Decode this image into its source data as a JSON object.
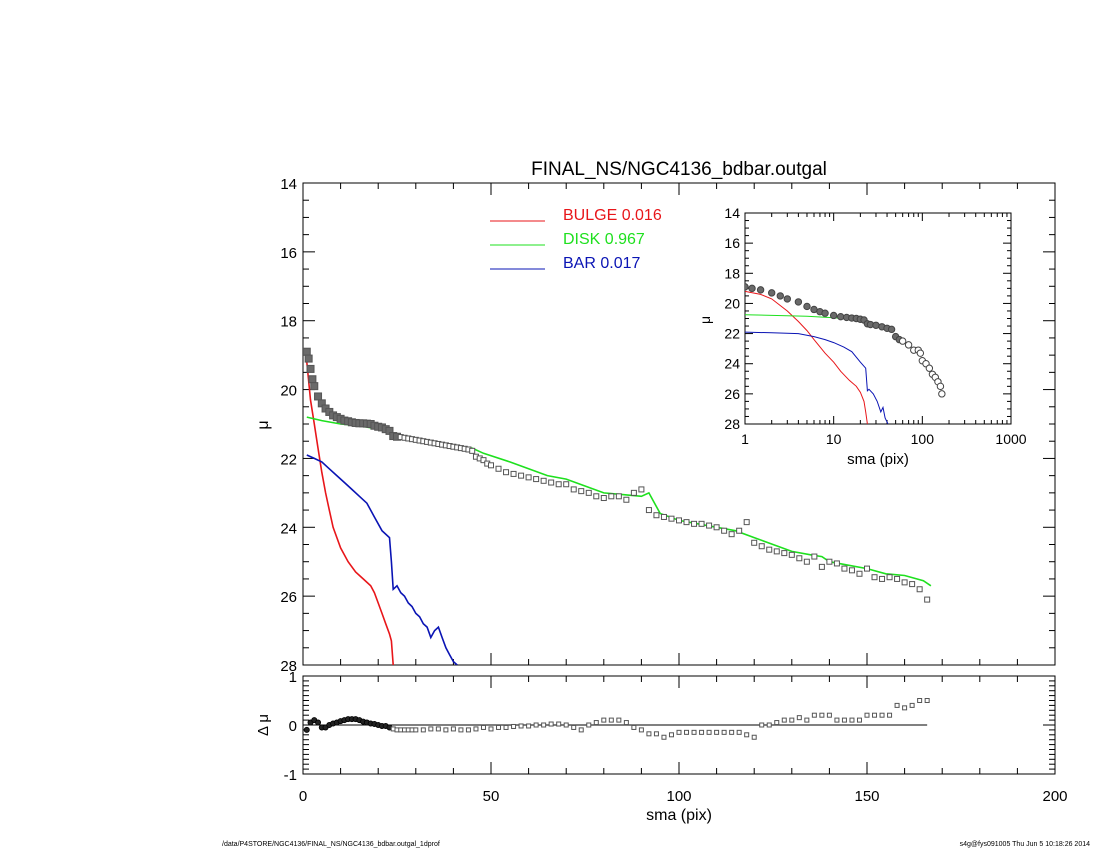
{
  "chart_data": [
    {
      "panel": "main",
      "type": "line",
      "title": "FINAL_NS/NGC4136_bdbar.outgal",
      "xlabel": "sma (pix)",
      "ylabel": "μ",
      "xlim": [
        0,
        200
      ],
      "ylim": [
        28,
        14
      ],
      "yticks": [
        14,
        16,
        18,
        20,
        22,
        24,
        26,
        28
      ],
      "xticks": [
        0,
        50,
        100,
        150,
        200
      ],
      "legend_position": "top-center",
      "legend": [
        {
          "label": "BULGE",
          "value": "0.016",
          "color": "#e8161a"
        },
        {
          "label": "DISK",
          "value": "0.967",
          "color": "#1ee01e"
        },
        {
          "label": "BAR",
          "value": "0.017",
          "color": "#0a14b4"
        }
      ],
      "series": [
        {
          "name": "BULGE",
          "color": "#e8161a",
          "x": [
            1,
            2,
            3,
            4,
            5,
            6,
            7,
            8,
            10,
            12,
            14,
            16,
            18,
            19,
            20,
            21,
            22,
            23,
            23.5,
            24
          ],
          "y": [
            19.2,
            20.3,
            21.0,
            21.7,
            22.4,
            23.0,
            23.5,
            24.0,
            24.6,
            25.0,
            25.3,
            25.5,
            25.7,
            25.9,
            26.2,
            26.5,
            26.8,
            27.1,
            27.3,
            28.0
          ]
        },
        {
          "name": "DISK",
          "color": "#1ee01e",
          "x": [
            1,
            5,
            10,
            15,
            20,
            23,
            24,
            30,
            40,
            45,
            48,
            55,
            60,
            65,
            70,
            75,
            80,
            85,
            90,
            92,
            95,
            100,
            105,
            110,
            115,
            120,
            125,
            130,
            135,
            138,
            140,
            145,
            150,
            155,
            160,
            165,
            167
          ],
          "y": [
            20.8,
            20.9,
            21.0,
            21.05,
            21.15,
            21.2,
            21.4,
            21.5,
            21.65,
            21.7,
            21.85,
            22.1,
            22.3,
            22.5,
            22.6,
            22.8,
            23.0,
            23.05,
            23.1,
            23.0,
            23.6,
            23.8,
            23.9,
            24.0,
            24.1,
            24.3,
            24.5,
            24.7,
            24.8,
            24.85,
            25.0,
            25.1,
            25.2,
            25.35,
            25.4,
            25.55,
            25.7
          ]
        },
        {
          "name": "BAR",
          "color": "#0a14b4",
          "x": [
            1,
            3,
            5,
            7,
            9,
            11,
            13,
            15,
            17,
            19,
            21,
            23,
            23.5,
            24,
            25,
            26,
            27,
            28,
            29,
            30,
            31,
            32,
            33,
            34,
            35,
            36,
            37,
            38,
            39,
            40,
            41
          ],
          "y": [
            21.9,
            22.0,
            22.1,
            22.3,
            22.5,
            22.7,
            22.9,
            23.1,
            23.3,
            23.7,
            24.1,
            24.3,
            25.0,
            25.8,
            25.7,
            25.9,
            26.0,
            26.2,
            26.3,
            26.5,
            26.6,
            26.8,
            26.9,
            27.2,
            27.0,
            26.9,
            27.2,
            27.5,
            27.7,
            27.9,
            28.0
          ]
        },
        {
          "name": "data",
          "color": "#555555",
          "x": [
            1,
            1.5,
            2,
            2.5,
            3,
            4,
            5,
            6,
            7,
            8,
            9,
            10,
            11,
            12,
            13,
            14,
            15,
            16,
            17,
            18,
            19,
            20,
            21,
            22,
            23,
            24,
            25,
            26,
            27,
            28,
            29,
            30,
            31,
            32,
            33,
            34,
            35,
            36,
            37,
            38,
            39,
            40,
            41,
            42,
            43,
            44,
            45,
            46,
            47,
            48,
            49,
            50,
            52,
            54,
            56,
            58,
            60,
            62,
            64,
            66,
            68,
            70,
            72,
            74,
            76,
            78,
            80,
            82,
            84,
            86,
            88,
            90,
            92,
            94,
            96,
            98,
            100,
            102,
            104,
            106,
            108,
            110,
            112,
            114,
            116,
            118,
            120,
            122,
            124,
            126,
            128,
            130,
            132,
            134,
            136,
            138,
            140,
            142,
            144,
            146,
            148,
            150,
            152,
            154,
            156,
            158,
            160,
            162,
            164,
            166
          ],
          "y": [
            18.9,
            19.1,
            19.4,
            19.7,
            19.9,
            20.2,
            20.4,
            20.55,
            20.65,
            20.75,
            20.8,
            20.85,
            20.9,
            20.92,
            20.95,
            20.97,
            20.98,
            20.98,
            20.99,
            21.0,
            21.05,
            21.08,
            21.1,
            21.15,
            21.2,
            21.35,
            21.37,
            21.38,
            21.4,
            21.42,
            21.44,
            21.46,
            21.48,
            21.5,
            21.52,
            21.54,
            21.56,
            21.58,
            21.6,
            21.62,
            21.64,
            21.66,
            21.68,
            21.7,
            21.72,
            21.74,
            21.78,
            21.95,
            22.0,
            22.05,
            22.15,
            22.2,
            22.3,
            22.4,
            22.45,
            22.5,
            22.55,
            22.6,
            22.65,
            22.7,
            22.75,
            22.75,
            22.9,
            22.95,
            23.0,
            23.1,
            23.15,
            23.1,
            23.1,
            23.2,
            23.0,
            22.9,
            23.5,
            23.65,
            23.7,
            23.75,
            23.8,
            23.85,
            23.9,
            23.9,
            23.95,
            24.0,
            24.1,
            24.2,
            24.1,
            23.85,
            24.45,
            24.55,
            24.65,
            24.7,
            24.75,
            24.8,
            24.9,
            25.0,
            24.85,
            25.15,
            25.0,
            25.05,
            25.2,
            25.25,
            25.35,
            25.2,
            25.45,
            25.5,
            25.45,
            25.5,
            25.6,
            25.65,
            25.8,
            26.1
          ]
        }
      ]
    },
    {
      "panel": "inset",
      "type": "line",
      "xlabel": "sma (pix)",
      "ylabel": "μ",
      "xscale": "log",
      "xlim": [
        1,
        1000
      ],
      "ylim": [
        28,
        14
      ],
      "xticks": [
        1,
        10,
        100,
        1000
      ],
      "yticks": [
        14,
        16,
        18,
        20,
        22,
        24,
        26,
        28
      ],
      "series": [
        {
          "name": "BULGE",
          "color": "#e8161a",
          "x": [
            1,
            1.5,
            2,
            3,
            4,
            5,
            6,
            8,
            10,
            12,
            15,
            18,
            20,
            22,
            23,
            24
          ],
          "y": [
            19.2,
            19.4,
            19.7,
            20.5,
            21.2,
            21.8,
            22.4,
            23.3,
            23.9,
            24.5,
            25.1,
            25.5,
            25.9,
            26.5,
            27.2,
            28.0
          ]
        },
        {
          "name": "DISK",
          "color": "#1ee01e",
          "x": [
            1,
            5,
            10,
            20,
            24
          ],
          "y": [
            20.75,
            20.85,
            20.95,
            21.1,
            21.2
          ]
        },
        {
          "name": "BAR",
          "color": "#0a14b4",
          "x": [
            1,
            2,
            4,
            6,
            8,
            10,
            13,
            16,
            20,
            23,
            24,
            25,
            28,
            31,
            34,
            36,
            38,
            41
          ],
          "y": [
            21.9,
            21.95,
            22.0,
            22.2,
            22.4,
            22.6,
            22.9,
            23.2,
            23.9,
            24.3,
            25.8,
            25.7,
            26.0,
            26.5,
            27.2,
            26.9,
            27.6,
            28.0
          ]
        },
        {
          "name": "data",
          "color": "#555555",
          "x": [
            1,
            1.2,
            1.5,
            2,
            2.5,
            3,
            4,
            5,
            6,
            7,
            8,
            10,
            12,
            14,
            16,
            18,
            20,
            22,
            24,
            26,
            30,
            35,
            40,
            45,
            50,
            55,
            60,
            70,
            80,
            90,
            95,
            100,
            110,
            120,
            130,
            140,
            150,
            160,
            166
          ],
          "y": [
            18.9,
            19.0,
            19.1,
            19.3,
            19.5,
            19.7,
            19.9,
            20.2,
            20.4,
            20.55,
            20.65,
            20.8,
            20.88,
            20.93,
            20.97,
            21.0,
            21.05,
            21.1,
            21.35,
            21.4,
            21.45,
            21.55,
            21.65,
            21.72,
            22.2,
            22.4,
            22.5,
            22.75,
            23.1,
            23.1,
            23.3,
            23.8,
            24.0,
            24.3,
            24.7,
            24.9,
            25.2,
            25.5,
            26.0
          ]
        }
      ]
    },
    {
      "panel": "residual",
      "type": "scatter",
      "xlabel": "sma (pix)",
      "ylabel": "Δ μ",
      "xlim": [
        0,
        200
      ],
      "ylim": [
        -1,
        1
      ],
      "yticks": [
        -1,
        0,
        1
      ],
      "zero_line": [
        0,
        166
      ],
      "series": [
        {
          "name": "residual",
          "color": "#555555",
          "x": [
            1,
            2,
            3,
            4,
            5,
            6,
            7,
            8,
            9,
            10,
            11,
            12,
            13,
            14,
            15,
            16,
            17,
            18,
            19,
            20,
            21,
            22,
            23,
            24,
            25,
            26,
            27,
            28,
            29,
            30,
            32,
            34,
            36,
            38,
            40,
            42,
            44,
            46,
            48,
            50,
            52,
            54,
            56,
            58,
            60,
            62,
            64,
            66,
            68,
            70,
            72,
            74,
            76,
            78,
            80,
            82,
            84,
            86,
            88,
            90,
            92,
            94,
            96,
            98,
            100,
            102,
            104,
            106,
            108,
            110,
            112,
            114,
            116,
            118,
            120,
            122,
            124,
            126,
            128,
            130,
            132,
            134,
            136,
            138,
            140,
            142,
            144,
            146,
            148,
            150,
            152,
            154,
            156,
            158,
            160,
            162,
            164,
            166
          ],
          "y": [
            -0.1,
            0.05,
            0.1,
            0.05,
            -0.05,
            -0.05,
            0.0,
            0.03,
            0.05,
            0.08,
            0.1,
            0.12,
            0.12,
            0.12,
            0.1,
            0.07,
            0.05,
            0.03,
            0.02,
            0.0,
            -0.02,
            -0.02,
            -0.05,
            -0.08,
            -0.1,
            -0.1,
            -0.1,
            -0.1,
            -0.1,
            -0.1,
            -0.1,
            -0.08,
            -0.08,
            -0.1,
            -0.08,
            -0.1,
            -0.1,
            -0.08,
            -0.05,
            -0.08,
            -0.05,
            -0.05,
            -0.03,
            -0.02,
            -0.02,
            0.0,
            0.0,
            0.02,
            0.02,
            0.0,
            -0.05,
            -0.1,
            0.0,
            0.05,
            0.1,
            0.1,
            0.1,
            0.05,
            -0.05,
            -0.1,
            -0.18,
            -0.18,
            -0.25,
            -0.2,
            -0.15,
            -0.15,
            -0.15,
            -0.15,
            -0.15,
            -0.15,
            -0.15,
            -0.15,
            -0.15,
            -0.2,
            -0.25,
            0.0,
            0.0,
            0.05,
            0.1,
            0.1,
            0.15,
            0.1,
            0.2,
            0.2,
            0.2,
            0.1,
            0.1,
            0.1,
            0.1,
            0.2,
            0.2,
            0.2,
            0.2,
            0.4,
            0.35,
            0.4,
            0.5,
            0.5
          ]
        }
      ]
    }
  ],
  "footer": {
    "path": "/data/P4STORE/NGC4136/FINAL_NS/NGC4136_bdbar.outgal_1dprof",
    "stamp": "s4g@fys091005  Thu Jun  5 10:18:26 2014"
  }
}
